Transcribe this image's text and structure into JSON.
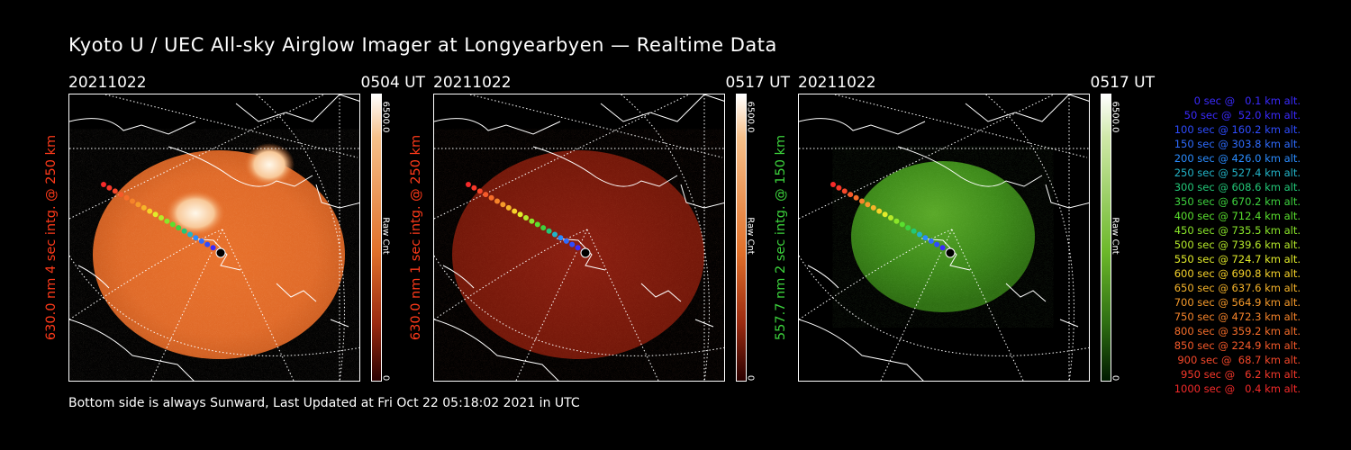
{
  "title": "Kyoto U / UEC All-sky Airglow Imager at Longyearbyen — Realtime Data",
  "footer": "Bottom side is always Sunward, Last Updated at Fri Oct 22 05:18:02 2021 in UTC",
  "panels": [
    {
      "date": "20211022",
      "time": "0504 UT",
      "side_label": "630.0 nm 4 sec intg. @ 250 km",
      "side_color": "#ff3a1a",
      "cbar_max": "6500.0",
      "cbar_mid": "Raw Cnt",
      "cbar_min": "0"
    },
    {
      "date": "20211022",
      "time": "0517 UT",
      "side_label": "630.0 nm 1 sec intg. @ 250 km",
      "side_color": "#ff3a1a",
      "cbar_max": "6500.0",
      "cbar_mid": "Raw Cnt",
      "cbar_min": "0"
    },
    {
      "date": "20211022",
      "time": "0517 UT",
      "side_label": "557.7 nm 2 sec intg. @ 150 km",
      "side_color": "#3cd23c",
      "cbar_max": "6500.0",
      "cbar_mid": "Raw Cnt",
      "cbar_min": "0"
    }
  ],
  "legend": [
    {
      "text": "0 sec @   0.1 km alt.",
      "color": "#3a2aff"
    },
    {
      "text": "50 sec @  52.0 km alt.",
      "color": "#3a2aff"
    },
    {
      "text": "100 sec @ 160.2 km alt.",
      "color": "#2e4cff"
    },
    {
      "text": "150 sec @ 303.8 km alt.",
      "color": "#2e6cff"
    },
    {
      "text": "200 sec @ 426.0 km alt.",
      "color": "#2a8cff"
    },
    {
      "text": "250 sec @ 527.4 km alt.",
      "color": "#22b4c8"
    },
    {
      "text": "300 sec @ 608.6 km alt.",
      "color": "#22c878"
    },
    {
      "text": "350 sec @ 670.2 km alt.",
      "color": "#3ed23e"
    },
    {
      "text": "400 sec @ 712.4 km alt.",
      "color": "#5ae02e"
    },
    {
      "text": "450 sec @ 735.5 km alt.",
      "color": "#8ae62a"
    },
    {
      "text": "500 sec @ 739.6 km alt.",
      "color": "#b6ea2a"
    },
    {
      "text": "550 sec @ 724.7 km alt.",
      "color": "#e2ec2a"
    },
    {
      "text": "600 sec @ 690.8 km alt.",
      "color": "#f6d22a"
    },
    {
      "text": "650 sec @ 637.6 km alt.",
      "color": "#f6b42a"
    },
    {
      "text": "700 sec @ 564.9 km alt.",
      "color": "#f69a2a"
    },
    {
      "text": "750 sec @ 472.3 km alt.",
      "color": "#f6842a"
    },
    {
      "text": "800 sec @ 359.2 km alt.",
      "color": "#f66e2a"
    },
    {
      "text": "850 sec @ 224.9 km alt.",
      "color": "#f65a2a"
    },
    {
      "text": "900 sec @  68.7 km alt.",
      "color": "#f6482a"
    },
    {
      "text": "950 sec @   6.2 km alt.",
      "color": "#f6382a"
    },
    {
      "text": "1000 sec @   0.4 km alt.",
      "color": "#f62a2a"
    }
  ]
}
